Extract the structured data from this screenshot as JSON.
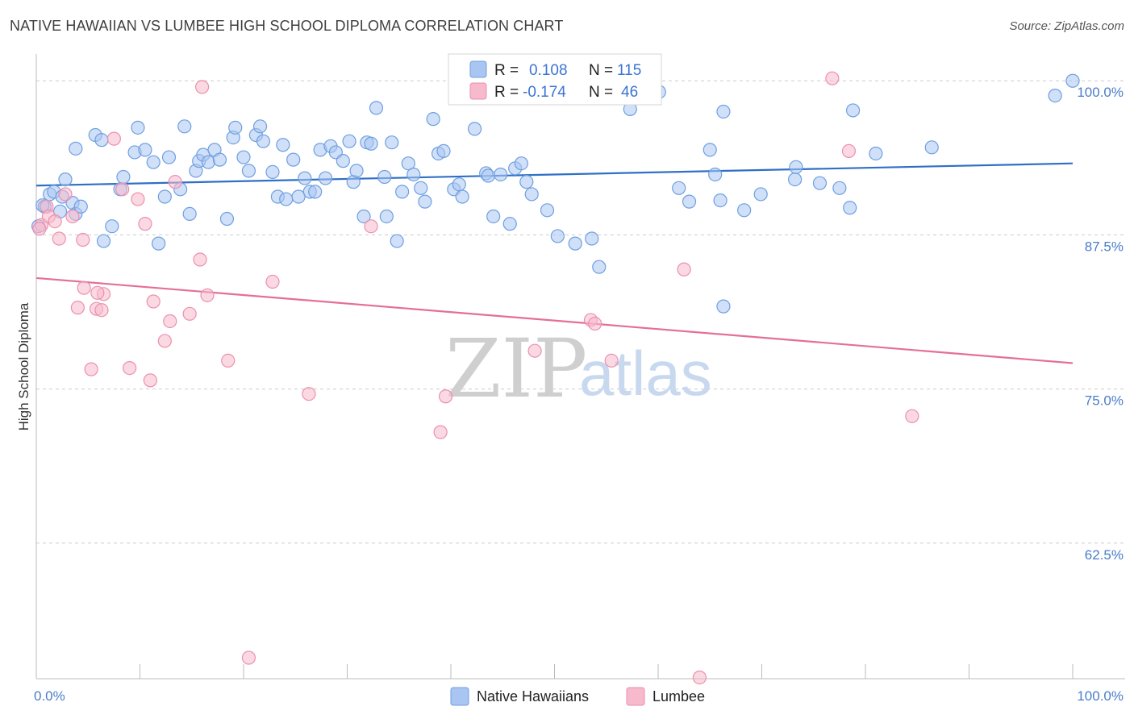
{
  "title": "NATIVE HAWAIIAN VS LUMBEE HIGH SCHOOL DIPLOMA CORRELATION CHART",
  "source": "Source: ZipAtlas.com",
  "watermark": {
    "zip": "ZIP",
    "atlas": "atlas"
  },
  "legend": {
    "rows": [
      {
        "r_label": "R =",
        "r_value": "0.108",
        "n_label": "N =",
        "n_value": "115",
        "color": "#a9c6f2"
      },
      {
        "r_label": "R =",
        "r_value": "-0.174",
        "n_label": "N =",
        "n_value": "46",
        "color": "#f7b9cc"
      }
    ]
  },
  "colors": {
    "blue_fill": "#a9c6f2",
    "blue_stroke": "#6f9fe0",
    "blue_line": "#2f6fc6",
    "pink_fill": "#f7b9cc",
    "pink_stroke": "#ec8fae",
    "pink_line": "#e46f98",
    "grid": "#cccccc",
    "tick_label": "#4a7cc9"
  },
  "chart_data": {
    "type": "scatter",
    "title": "NATIVE HAWAIIAN VS LUMBEE HIGH SCHOOL DIPLOMA CORRELATION CHART",
    "xlabel": "",
    "ylabel": "High School Diploma",
    "xlim": [
      0,
      100
    ],
    "ylim": [
      51.5,
      102.5
    ],
    "x_tick_labels": [
      {
        "x": 0,
        "label": "0.0%"
      },
      {
        "x": 100,
        "label": "100.0%"
      }
    ],
    "y_ticks": [
      {
        "y": 100,
        "label": "100.0%"
      },
      {
        "y": 87.5,
        "label": "87.5%"
      },
      {
        "y": 75,
        "label": "75.0%"
      },
      {
        "y": 62.5,
        "label": "62.5%"
      }
    ],
    "grid": "dashed horizontal",
    "legend_position": "top-center",
    "series": [
      {
        "name": "Native Hawaiians",
        "color": "#a9c6f2",
        "trend": {
          "x": [
            0,
            100
          ],
          "y": [
            91.5,
            93.3
          ]
        },
        "points": [
          [
            0.2,
            88.2
          ],
          [
            0.8,
            89.8
          ],
          [
            1.3,
            90.8
          ],
          [
            1.7,
            91.0
          ],
          [
            2.3,
            89.4
          ],
          [
            2.5,
            90.6
          ],
          [
            2.8,
            92.0
          ],
          [
            3.5,
            90.1
          ],
          [
            3.8,
            89.2
          ],
          [
            3.8,
            94.5
          ],
          [
            4.3,
            89.8
          ],
          [
            5.7,
            95.6
          ],
          [
            6.3,
            95.2
          ],
          [
            6.5,
            87.0
          ],
          [
            7.3,
            88.2
          ],
          [
            8.1,
            91.2
          ],
          [
            8.4,
            92.2
          ],
          [
            9.5,
            94.2
          ],
          [
            9.8,
            96.2
          ],
          [
            10.5,
            94.4
          ],
          [
            11.3,
            93.4
          ],
          [
            11.8,
            86.8
          ],
          [
            12.4,
            90.6
          ],
          [
            12.8,
            93.8
          ],
          [
            13.9,
            91.2
          ],
          [
            14.3,
            96.3
          ],
          [
            14.8,
            89.2
          ],
          [
            15.4,
            92.7
          ],
          [
            15.7,
            93.5
          ],
          [
            16.1,
            94.0
          ],
          [
            16.6,
            93.4
          ],
          [
            17.2,
            94.4
          ],
          [
            17.7,
            93.6
          ],
          [
            18.4,
            88.8
          ],
          [
            19.0,
            95.4
          ],
          [
            19.2,
            96.2
          ],
          [
            20.0,
            93.8
          ],
          [
            20.5,
            92.7
          ],
          [
            21.2,
            95.6
          ],
          [
            21.6,
            96.3
          ],
          [
            21.9,
            95.1
          ],
          [
            22.8,
            92.6
          ],
          [
            23.3,
            90.6
          ],
          [
            23.8,
            94.8
          ],
          [
            24.1,
            90.4
          ],
          [
            24.8,
            93.6
          ],
          [
            25.3,
            90.6
          ],
          [
            25.9,
            92.1
          ],
          [
            26.4,
            91.0
          ],
          [
            26.9,
            91.0
          ],
          [
            27.4,
            94.4
          ],
          [
            27.9,
            92.1
          ],
          [
            28.4,
            94.7
          ],
          [
            28.9,
            94.2
          ],
          [
            29.6,
            93.5
          ],
          [
            30.2,
            95.1
          ],
          [
            30.6,
            91.8
          ],
          [
            30.9,
            92.7
          ],
          [
            31.6,
            89.0
          ],
          [
            31.9,
            95.0
          ],
          [
            32.3,
            94.9
          ],
          [
            32.8,
            97.8
          ],
          [
            33.6,
            92.2
          ],
          [
            34.3,
            95.0
          ],
          [
            34.8,
            87.0
          ],
          [
            35.3,
            91.0
          ],
          [
            35.9,
            93.3
          ],
          [
            36.4,
            92.4
          ],
          [
            37.1,
            91.3
          ],
          [
            37.5,
            90.2
          ],
          [
            38.3,
            96.9
          ],
          [
            38.8,
            94.1
          ],
          [
            39.3,
            94.3
          ],
          [
            40.3,
            91.2
          ],
          [
            40.8,
            91.6
          ],
          [
            41.1,
            90.6
          ],
          [
            42.3,
            96.1
          ],
          [
            43.4,
            92.5
          ],
          [
            43.6,
            92.3
          ],
          [
            44.1,
            89.0
          ],
          [
            44.8,
            92.4
          ],
          [
            45.7,
            88.4
          ],
          [
            46.2,
            92.9
          ],
          [
            46.8,
            93.3
          ],
          [
            47.3,
            91.8
          ],
          [
            47.8,
            90.8
          ],
          [
            49.3,
            89.5
          ],
          [
            50.3,
            87.4
          ],
          [
            52.0,
            86.8
          ],
          [
            53.6,
            87.2
          ],
          [
            54.3,
            84.9
          ],
          [
            57.3,
            97.7
          ],
          [
            59.4,
            100.1
          ],
          [
            60.1,
            99.1
          ],
          [
            62.0,
            91.3
          ],
          [
            63.0,
            90.2
          ],
          [
            65.0,
            94.4
          ],
          [
            65.5,
            92.4
          ],
          [
            66.0,
            90.3
          ],
          [
            66.3,
            97.5
          ],
          [
            66.3,
            81.7
          ],
          [
            68.3,
            89.5
          ],
          [
            69.9,
            90.8
          ],
          [
            73.2,
            92.0
          ],
          [
            73.3,
            93.0
          ],
          [
            75.6,
            91.7
          ],
          [
            77.5,
            91.3
          ],
          [
            78.5,
            89.7
          ],
          [
            78.8,
            97.6
          ],
          [
            81.0,
            94.1
          ],
          [
            86.4,
            94.6
          ],
          [
            98.3,
            98.8
          ],
          [
            100.0,
            100.0
          ],
          [
            0.6,
            89.9
          ],
          [
            33.8,
            89.0
          ]
        ]
      },
      {
        "name": "Lumbee",
        "color": "#f7b9cc",
        "trend": {
          "x": [
            0,
            100
          ],
          "y": [
            84.0,
            77.1
          ]
        },
        "points": [
          [
            0.5,
            88.3
          ],
          [
            1.0,
            89.8
          ],
          [
            1.2,
            89.0
          ],
          [
            1.8,
            88.6
          ],
          [
            2.2,
            87.2
          ],
          [
            2.8,
            90.8
          ],
          [
            3.5,
            89.0
          ],
          [
            4.0,
            81.6
          ],
          [
            4.5,
            87.1
          ],
          [
            4.6,
            83.2
          ],
          [
            5.3,
            76.6
          ],
          [
            5.8,
            81.5
          ],
          [
            6.3,
            81.4
          ],
          [
            6.5,
            82.7
          ],
          [
            7.5,
            95.3
          ],
          [
            8.3,
            91.2
          ],
          [
            9.0,
            76.7
          ],
          [
            9.8,
            90.4
          ],
          [
            10.5,
            88.4
          ],
          [
            11.0,
            75.7
          ],
          [
            11.3,
            82.1
          ],
          [
            12.4,
            78.9
          ],
          [
            12.9,
            80.5
          ],
          [
            13.4,
            91.8
          ],
          [
            14.8,
            81.1
          ],
          [
            15.8,
            85.5
          ],
          [
            16.0,
            99.5
          ],
          [
            16.5,
            82.6
          ],
          [
            18.5,
            77.3
          ],
          [
            20.5,
            53.2
          ],
          [
            22.8,
            83.7
          ],
          [
            26.3,
            74.6
          ],
          [
            32.3,
            88.2
          ],
          [
            39.0,
            71.5
          ],
          [
            39.5,
            74.4
          ],
          [
            48.1,
            78.1
          ],
          [
            53.5,
            80.6
          ],
          [
            53.9,
            80.3
          ],
          [
            55.5,
            77.3
          ],
          [
            62.5,
            84.7
          ],
          [
            64.0,
            51.6
          ],
          [
            76.8,
            100.2
          ],
          [
            78.4,
            94.3
          ],
          [
            84.5,
            72.8
          ],
          [
            0.3,
            88.0
          ],
          [
            5.9,
            82.8
          ]
        ]
      }
    ]
  },
  "bottom_legend": [
    {
      "label": "Native Hawaiians",
      "color": "#a9c6f2"
    },
    {
      "label": "Lumbee",
      "color": "#f7b9cc"
    }
  ]
}
